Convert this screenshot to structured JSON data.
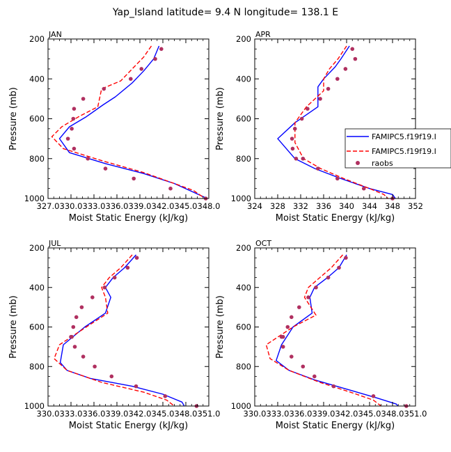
{
  "figure": {
    "title": "Yap_Island  latitude= 9.4 N longitude= 138.1 E"
  },
  "legend": {
    "entries": [
      {
        "label": "FAMIPC5.f19f19.I",
        "style": "solid",
        "color": "#0000ff"
      },
      {
        "label": "FAMIPC5.f19f19.I",
        "style": "dashed",
        "color": "#ff0000"
      },
      {
        "label": "raobs",
        "style": "marker",
        "color": "#b03060"
      }
    ]
  },
  "chart_data": [
    {
      "type": "line",
      "title": "JAN",
      "xlabel": "Moist Static Energy (kJ/kg)",
      "ylabel": "Pressure (mb)",
      "xlim": [
        327.0,
        348.0
      ],
      "ylim": [
        1000,
        200
      ],
      "xticks": [
        327.0,
        330.0,
        333.0,
        336.0,
        339.0,
        342.0,
        345.0,
        348.0
      ],
      "xtick_labels": [
        "327.0",
        "330.0",
        "333.0",
        "336.0",
        "339.0",
        "342.0",
        "345.0",
        "348.0"
      ],
      "yticks": [
        200,
        400,
        600,
        800,
        1000
      ],
      "ytick_labels": [
        "200",
        "400",
        "600",
        "800",
        "1000"
      ],
      "series": [
        {
          "name": "FAMIPC5.f19f19.I",
          "style": "solid",
          "color": "#0000ff",
          "x": [
            341.5,
            340.8,
            339.5,
            338.0,
            335.8,
            334.2,
            332.0,
            329.8,
            328.5,
            329.8,
            334.5,
            339.5,
            343.5,
            345.5,
            347.8
          ],
          "y": [
            235,
            300,
            360,
            420,
            490,
            530,
            590,
            640,
            700,
            770,
            825,
            875,
            925,
            960,
            1000
          ]
        },
        {
          "name": "FAMIPC5.f19f19.I",
          "style": "dashed",
          "color": "#ff0000",
          "x": [
            340.5,
            339.5,
            338.0,
            336.5,
            334.0,
            333.5,
            331.0,
            328.8,
            327.5,
            329.0,
            334.0,
            339.5,
            343.5,
            346.0,
            347.5
          ],
          "y": [
            235,
            290,
            350,
            410,
            450,
            540,
            590,
            640,
            690,
            750,
            810,
            870,
            925,
            960,
            1000
          ]
        },
        {
          "name": "raobs",
          "style": "marker",
          "color": "#b03060",
          "x": [
            341.8,
            341.0,
            339.2,
            337.8,
            334.3,
            331.6,
            330.4,
            330.3,
            330.1,
            329.6,
            330.4,
            332.2,
            334.5,
            338.2,
            343.0,
            347.6
          ],
          "y": [
            250,
            300,
            350,
            400,
            450,
            500,
            550,
            600,
            650,
            700,
            750,
            800,
            850,
            900,
            950,
            1000
          ]
        }
      ]
    },
    {
      "type": "line",
      "title": "APR",
      "xlabel": "Moist Static Energy (kJ/kg)",
      "ylabel": "Pressure (mb)",
      "xlim": [
        324,
        352
      ],
      "ylim": [
        1000,
        200
      ],
      "xticks": [
        324,
        328,
        332,
        336,
        340,
        344,
        348,
        352
      ],
      "xtick_labels": [
        "324",
        "328",
        "332",
        "336",
        "340",
        "344",
        "348",
        "352"
      ],
      "yticks": [
        200,
        400,
        600,
        800,
        1000
      ],
      "ytick_labels": [
        "200",
        "400",
        "600",
        "800",
        "1000"
      ],
      "series": [
        {
          "name": "FAMIPC5.f19f19.I",
          "style": "solid",
          "color": "#0000ff",
          "x": [
            340.5,
            339.0,
            338.0,
            336.0,
            335.0,
            335.0,
            331.0,
            328.0,
            331.0,
            334.5,
            339.0,
            344.0,
            348.0,
            348.5
          ],
          "y": [
            235,
            300,
            340,
            400,
            440,
            540,
            620,
            700,
            800,
            850,
            900,
            950,
            980,
            1000
          ]
        },
        {
          "name": "FAMIPC5.f19f19.I",
          "style": "dashed",
          "color": "#ff0000",
          "x": [
            340.0,
            338.5,
            337.0,
            336.0,
            336.0,
            333.0,
            331.0,
            331.0,
            332.5,
            335.5,
            339.5,
            344.0,
            346.5,
            347.2
          ],
          "y": [
            235,
            300,
            350,
            400,
            460,
            540,
            620,
            720,
            800,
            850,
            900,
            950,
            980,
            1000
          ]
        },
        {
          "name": "raobs",
          "style": "marker",
          "color": "#b03060",
          "x": [
            341.0,
            341.5,
            339.8,
            338.4,
            336.8,
            335.4,
            333.2,
            332.2,
            331.0,
            330.5,
            330.6,
            331.2,
            332.4,
            335.0,
            338.4,
            343.0,
            348.0
          ],
          "y": [
            250,
            300,
            350,
            400,
            450,
            500,
            550,
            600,
            650,
            700,
            750,
            800,
            800,
            850,
            900,
            950,
            1000
          ]
        }
      ]
    },
    {
      "type": "line",
      "title": "JUL",
      "xlabel": "Moist Static Energy (kJ/kg)",
      "ylabel": "Pressure (mb)",
      "xlim": [
        330.0,
        351.0
      ],
      "ylim": [
        1000,
        200
      ],
      "xticks": [
        330.0,
        333.0,
        336.0,
        339.0,
        342.0,
        345.0,
        348.0,
        351.0
      ],
      "xtick_labels": [
        "330.0",
        "333.0",
        "336.0",
        "339.0",
        "342.0",
        "345.0",
        "348.0",
        "351.0"
      ],
      "yticks": [
        200,
        400,
        600,
        800,
        1000
      ],
      "ytick_labels": [
        "200",
        "400",
        "600",
        "800",
        "1000"
      ],
      "series": [
        {
          "name": "FAMIPC5.f19f19.I",
          "style": "solid",
          "color": "#0000ff",
          "x": [
            341.5,
            340.0,
            338.5,
            337.5,
            338.2,
            337.5,
            334.8,
            332.0,
            331.6,
            332.5,
            335.5,
            341.0,
            345.0,
            347.5,
            347.8
          ],
          "y": [
            235,
            300,
            350,
            400,
            450,
            530,
            600,
            690,
            780,
            820,
            860,
            900,
            940,
            980,
            1000
          ]
        },
        {
          "name": "FAMIPC5.f19f19.I",
          "style": "dashed",
          "color": "#ff0000",
          "x": [
            341.0,
            339.5,
            338.0,
            337.0,
            337.5,
            337.8,
            335.0,
            331.5,
            330.8,
            332.5,
            337.0,
            342.5,
            345.5,
            346.5
          ],
          "y": [
            235,
            300,
            350,
            400,
            450,
            530,
            600,
            690,
            760,
            820,
            880,
            930,
            970,
            1000
          ]
        },
        {
          "name": "raobs",
          "style": "marker",
          "color": "#b03060",
          "x": [
            341.6,
            340.4,
            338.7,
            337.4,
            335.8,
            334.4,
            333.7,
            333.3,
            333.0,
            333.1,
            333.5,
            334.6,
            336.1,
            338.3,
            341.5,
            345.3,
            349.4
          ],
          "y": [
            250,
            300,
            350,
            400,
            450,
            500,
            550,
            600,
            650,
            650,
            700,
            750,
            800,
            850,
            900,
            950,
            1000
          ]
        }
      ]
    },
    {
      "type": "line",
      "title": "OCT",
      "xlabel": "Moist Static Energy (kJ/kg)",
      "ylabel": "Pressure (mb)",
      "xlim": [
        330.0,
        351.0
      ],
      "ylim": [
        1000,
        200
      ],
      "xticks": [
        330.0,
        333.0,
        336.0,
        339.0,
        342.0,
        345.0,
        348.0,
        351.0
      ],
      "xtick_labels": [
        "330.0",
        "333.0",
        "336.0",
        "339.0",
        "342.0",
        "345.0",
        "348.0",
        "351.0"
      ],
      "yticks": [
        200,
        400,
        600,
        800,
        1000
      ],
      "ytick_labels": [
        "200",
        "400",
        "600",
        "800",
        "1000"
      ],
      "series": [
        {
          "name": "FAMIPC5.f19f19.I",
          "style": "solid",
          "color": "#0000ff",
          "x": [
            342.0,
            341.0,
            339.5,
            337.8,
            337.2,
            337.5,
            335.0,
            333.5,
            332.8,
            334.5,
            338.0,
            342.5,
            346.0,
            348.5,
            348.7
          ],
          "y": [
            235,
            300,
            350,
            400,
            450,
            530,
            600,
            690,
            770,
            820,
            870,
            920,
            960,
            990,
            1000
          ]
        },
        {
          "name": "FAMIPC5.f19f19.I",
          "style": "dashed",
          "color": "#ff0000",
          "x": [
            341.5,
            340.0,
            338.5,
            337.0,
            336.5,
            338.0,
            335.0,
            331.5,
            332.0,
            334.5,
            338.5,
            342.5,
            345.5,
            346.5
          ],
          "y": [
            235,
            300,
            350,
            400,
            450,
            540,
            600,
            690,
            760,
            820,
            880,
            930,
            970,
            1000
          ]
        },
        {
          "name": "raobs",
          "style": "marker",
          "color": "#b03060",
          "x": [
            341.9,
            341.0,
            339.6,
            338.0,
            337.0,
            335.8,
            334.8,
            334.3,
            333.7,
            333.5,
            333.7,
            334.8,
            336.3,
            337.8,
            340.3,
            345.5,
            349.8
          ],
          "y": [
            250,
            300,
            350,
            400,
            450,
            500,
            550,
            600,
            650,
            650,
            700,
            750,
            800,
            850,
            900,
            950,
            1000
          ]
        }
      ]
    }
  ]
}
